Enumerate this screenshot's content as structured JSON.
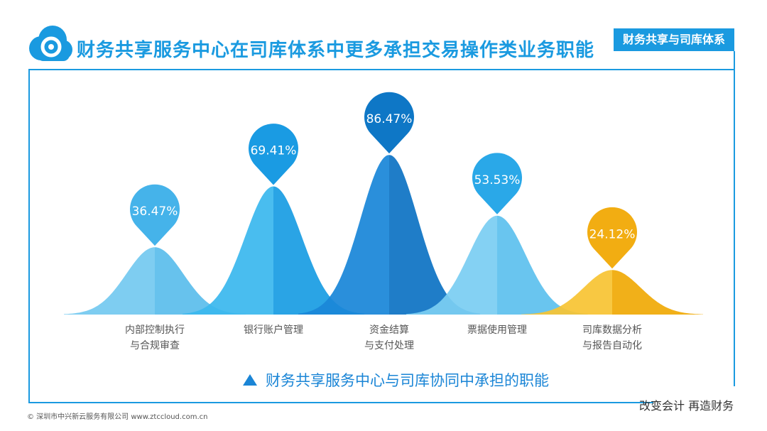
{
  "header": {
    "title": "财务共享服务中心在司库体系中更多承担交易操作类业务职能",
    "tag": "财务共享与司库体系"
  },
  "legend_label": "财务共享服务中心与司库协同中承担的职能",
  "footer": {
    "slogan": "改变会计  再造财务",
    "copyright": "© 深圳市中兴新云服务有限公司  www.ztccloud.com.cn"
  },
  "categories": [
    [
      "内部控制执行",
      "与合规审查"
    ],
    [
      "银行账户管理"
    ],
    [
      "资金结算",
      "与支付处理"
    ],
    [
      "票据使用管理"
    ],
    [
      "司库数据分析",
      "与报告自动化"
    ]
  ],
  "chart_data": {
    "type": "area",
    "categories": [
      "内部控制执行与合规审查",
      "银行账户管理",
      "资金结算与支付处理",
      "票据使用管理",
      "司库数据分析与报告自动化"
    ],
    "values": [
      36.47,
      69.41,
      86.47,
      53.53,
      24.12
    ],
    "labels": [
      "36.47%",
      "69.41%",
      "86.47%",
      "53.53%",
      "24.12%"
    ],
    "colors": {
      "light": [
        "#74c9f0",
        "#3bb8ee",
        "#1a86d8",
        "#7bcdf2",
        "#f8c434"
      ],
      "dark": [
        "#5bbdec",
        "#1a9de3",
        "#0e73c4",
        "#5ec1ee",
        "#f0aa08"
      ],
      "marker": [
        "#45b3ea",
        "#1a9be3",
        "#0e77c6",
        "#2aa8e8",
        "#f2ad12"
      ]
    },
    "ylim": [
      0,
      100
    ]
  }
}
